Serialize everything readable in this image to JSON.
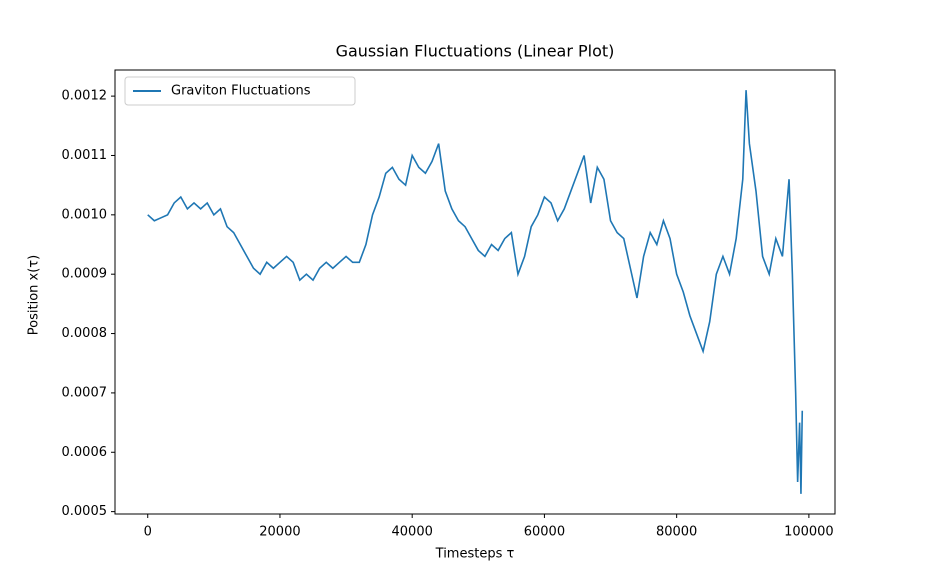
{
  "chart_data": {
    "type": "line",
    "title": "Gaussian Fluctuations (Linear Plot)",
    "x_label": "Timesteps τ",
    "y_label": "Position x(τ)",
    "x": [
      0,
      1000,
      2000,
      3000,
      4000,
      5000,
      6000,
      7000,
      8000,
      9000,
      10000,
      11000,
      12000,
      13000,
      14000,
      15000,
      16000,
      17000,
      18000,
      19000,
      20000,
      21000,
      22000,
      23000,
      24000,
      25000,
      26000,
      27000,
      28000,
      29000,
      30000,
      31000,
      32000,
      33000,
      34000,
      35000,
      36000,
      37000,
      38000,
      39000,
      40000,
      41000,
      42000,
      43000,
      44000,
      45000,
      46000,
      47000,
      48000,
      49000,
      50000,
      51000,
      52000,
      53000,
      54000,
      55000,
      56000,
      57000,
      58000,
      59000,
      60000,
      61000,
      62000,
      63000,
      64000,
      65000,
      66000,
      67000,
      68000,
      69000,
      70000,
      71000,
      72000,
      73000,
      74000,
      75000,
      76000,
      77000,
      78000,
      79000,
      80000,
      81000,
      82000,
      83000,
      84000,
      85000,
      86000,
      87000,
      88000,
      89000,
      90000,
      90500,
      91000,
      92000,
      93000,
      94000,
      95000,
      96000,
      97000,
      97500,
      98000,
      98300,
      98600,
      98800,
      99000
    ],
    "series": [
      {
        "name": "Graviton Fluctuations",
        "color": "#1f77b4",
        "values": [
          0.001,
          0.00099,
          0.000995,
          0.001,
          0.00102,
          0.00103,
          0.00101,
          0.00102,
          0.00101,
          0.00102,
          0.001,
          0.00101,
          0.00098,
          0.00097,
          0.00095,
          0.00093,
          0.00091,
          0.0009,
          0.00092,
          0.00091,
          0.00092,
          0.00093,
          0.00092,
          0.00089,
          0.0009,
          0.00089,
          0.00091,
          0.00092,
          0.00091,
          0.00092,
          0.00093,
          0.00092,
          0.00092,
          0.00095,
          0.001,
          0.00103,
          0.00107,
          0.00108,
          0.00106,
          0.00105,
          0.0011,
          0.00108,
          0.00107,
          0.00109,
          0.00112,
          0.00104,
          0.00101,
          0.00099,
          0.00098,
          0.00096,
          0.00094,
          0.00093,
          0.00095,
          0.00094,
          0.00096,
          0.00097,
          0.0009,
          0.00093,
          0.00098,
          0.001,
          0.00103,
          0.00102,
          0.00099,
          0.00101,
          0.00104,
          0.00107,
          0.0011,
          0.00102,
          0.00108,
          0.00106,
          0.00099,
          0.00097,
          0.00096,
          0.00091,
          0.00086,
          0.00093,
          0.00097,
          0.00095,
          0.00099,
          0.00096,
          0.0009,
          0.00087,
          0.00083,
          0.0008,
          0.00077,
          0.00082,
          0.0009,
          0.00093,
          0.0009,
          0.00096,
          0.00106,
          0.00121,
          0.00112,
          0.00104,
          0.00093,
          0.0009,
          0.00096,
          0.00093,
          0.00106,
          0.0009,
          0.0007,
          0.00055,
          0.00065,
          0.00053,
          0.00067
        ]
      }
    ],
    "xlim": [
      -4950,
      103950
    ],
    "xticks": [
      0,
      20000,
      40000,
      60000,
      80000,
      100000
    ],
    "ylim": [
      0.000496,
      0.001244
    ],
    "yticks": [
      0.0005,
      0.0006,
      0.0007,
      0.0008,
      0.0009,
      {
        "value": 0.001,
        "label": "0.0010"
      },
      0.0011,
      0.0012
    ],
    "legend": "upper left",
    "grid": false
  }
}
